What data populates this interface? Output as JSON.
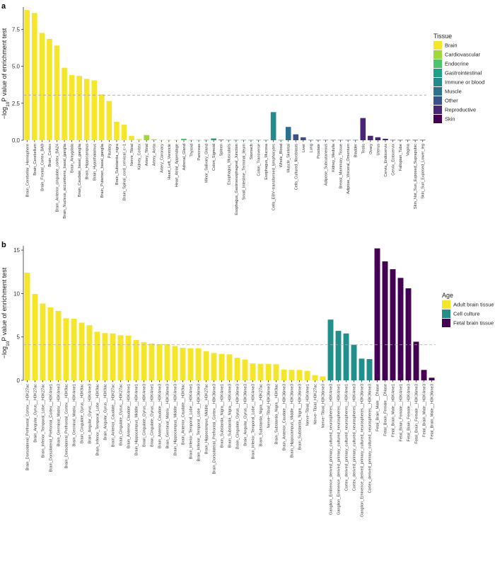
{
  "panels": {
    "a": {
      "label": "a"
    },
    "b": {
      "label": "b"
    }
  },
  "chart_data": [
    {
      "type": "bar",
      "ylabel": "−log10P value of enrichment test",
      "ylabel_parts": {
        "pre": "−log",
        "sub": "10",
        "post": "P value of enrichment test"
      },
      "ylim": [
        0,
        9
      ],
      "yticks": [
        "0.0",
        "2.5",
        "5.0",
        "7.5"
      ],
      "ytick_values": [
        0,
        2.5,
        5.0,
        7.5
      ],
      "threshold": 3.05,
      "legend": {
        "title": "Tissue",
        "position": "right",
        "entries": [
          {
            "name": "Brain",
            "color": "#F5E629"
          },
          {
            "name": "Cardiovascular",
            "color": "#A0D83A"
          },
          {
            "name": "Endocrine",
            "color": "#4DC36B"
          },
          {
            "name": "Gastrointestinal",
            "color": "#1FA187"
          },
          {
            "name": "Immune or blood",
            "color": "#238A8D"
          },
          {
            "name": "Muscle",
            "color": "#2C718E"
          },
          {
            "name": "Other",
            "color": "#3B518B"
          },
          {
            "name": "Reproductive",
            "color": "#482576"
          },
          {
            "name": "Skin",
            "color": "#440154"
          }
        ]
      },
      "categories": [
        "Brain_Cerebellar_Hemisphere",
        "Brain_Cerebellum",
        "Brain_Frontal_Cortex_BA9",
        "Brain_Cortex",
        "Brain_Anterior_cingulate_cortex_BA24",
        "Brain_Nucleus_accumbens_basal_ganglia",
        "Brain_Amygdala",
        "Brain_Caudate_basal_ganglia",
        "Brain_Hippocampus",
        "Brain_Hypothalamus",
        "Brain_Putamen_basal_ganglia",
        "Pituitary",
        "Brain_Substantia_nigra",
        "Brain_Spinal_cord_cervical_c−1",
        "Nerve_Tibial",
        "Kidney_Cortex",
        "Artery_Tibial",
        "Artery_Aorta",
        "Artery_Coronary",
        "Heart_Left_Ventricle",
        "Heart_Atrial_Appendage",
        "Adrenal_Gland",
        "Thyroid",
        "Pancreas",
        "Minor_Salivary_Gland",
        "Colon_Sigmoid",
        "Spleen",
        "Esophagus_Muscularis",
        "Esophagus_Gastroesophageal_Junction",
        "Small_Intestine_Terminal_Ileum",
        "Stomach",
        "Colon_Transverse",
        "Esophagus_Mucosa",
        "Cells_EBV−transformed_lymphocytes",
        "Whole_Blood",
        "Muscle_Skeletal",
        "Cells_Cultured_fibroblasts",
        "Liver",
        "Lung",
        "Prostate",
        "Adipose_Subcutaneous",
        "Kidney_Medulla",
        "Breast_Mammary_Tissue",
        "Adipose_Visceral_Omentum",
        "Bladder",
        "Testis",
        "Ovary",
        "Uterus",
        "Cervix_Endocervix",
        "Cervix_Ectocervix",
        "Fallopian_Tube",
        "Vagina",
        "Skin_Not_Sun_Exposed_Suprapubic",
        "Skin_Sun_Exposed_Lower_leg"
      ],
      "values": [
        8.8,
        8.6,
        7.25,
        6.85,
        6.4,
        4.9,
        4.4,
        4.35,
        4.15,
        4.05,
        3.1,
        2.65,
        1.25,
        1.05,
        0.3,
        0.08,
        0.35,
        0.06,
        0.02,
        0.02,
        0.02,
        0.1,
        0.02,
        0.02,
        0.02,
        0.12,
        0.04,
        0.02,
        0.02,
        0.02,
        0.02,
        0.02,
        0.02,
        1.9,
        0.02,
        0.9,
        0.4,
        0.2,
        0.02,
        0.02,
        0.02,
        0.02,
        0.02,
        0.02,
        0.02,
        1.5,
        0.3,
        0.2,
        0.1,
        0.02,
        0.02,
        0.02,
        0.02,
        0.02
      ],
      "groups": [
        0,
        0,
        0,
        0,
        0,
        0,
        0,
        0,
        0,
        0,
        0,
        0,
        0,
        0,
        0,
        0,
        1,
        1,
        1,
        1,
        1,
        2,
        2,
        2,
        3,
        3,
        3,
        3,
        3,
        3,
        3,
        3,
        3,
        4,
        4,
        5,
        6,
        6,
        6,
        6,
        6,
        6,
        6,
        6,
        6,
        7,
        7,
        7,
        7,
        7,
        7,
        7,
        8,
        8
      ]
    },
    {
      "type": "bar",
      "ylabel": "−log10P value of enrichment test",
      "ylabel_parts": {
        "pre": "−log",
        "sub": "10",
        "post": "P value of enrichment test"
      },
      "ylim": [
        0,
        15.5
      ],
      "yticks": [
        "0",
        "5",
        "10",
        "15"
      ],
      "ytick_values": [
        0,
        5,
        10,
        15
      ],
      "threshold": 4.1,
      "legend": {
        "title": "Age",
        "position": "right",
        "entries": [
          {
            "name": "Adult brain tissue",
            "color": "#F5E629"
          },
          {
            "name": "Cell culture",
            "color": "#21908C"
          },
          {
            "name": "Fetal brain tissue",
            "color": "#440154"
          }
        ]
      },
      "categories": [
        "Brain_Dorsolateral_Prefrontal_Cortex__H3K27ac",
        "Brain_Angular_Gyrus__H3K27ac",
        "Brain_Inferior_Temporal_Lobe__H3K27ac",
        "Brain_Dorsolateral_Prefrontal_Cortex__H3K4me1",
        "Brain_Germinal_Matrix__H3K4me3",
        "Brain_Dorsolateral_Prefrontal_Cortex__H3K9ac",
        "Brain_Germinal_Matrix__H3K4me1",
        "Brain_Cingulate_Gyrus__H3K9ac",
        "Brain_Angular_Gyrus__H3K4me3",
        "Brain_Inferior_Temporal_Lobe__H3K9ac",
        "Brain_Angular_Gyrus__H3K9ac",
        "Brain_Anterior_Caudate__H3K27ac",
        "Brain_Cingulate_Gyrus__H3K27ac",
        "Brain_Anterior_Caudate__H3K4me1",
        "Brain_Hippocampus_Middle__H3K4me1",
        "Brain_Cingulate_Gyrus__H3K4me3",
        "Brain_Cingulate_Gyrus__H3K4me1",
        "Brain_Anterior_Caudate__H3K4me3",
        "Brain_Germinal_Matrix__H3K36me3",
        "Brain_Hippocampus_Middle__H3K4me3",
        "Brain_Anterior_Caudate__H3K9ac",
        "Brain_Inferior_Temporal_Lobe__H3K4me1",
        "Brain_Inferior_Temporal_Lobe__H3K36me3",
        "Brain_Hippocampus_Middle__H3K27ac",
        "Brain_Dorsolateral_Prefrontal_Cortex__H3K36me3",
        "Brain_Substantia_Nigra__H3K4me1",
        "Brain_Substantia_Nigra__H3K4me3",
        "Brain_Cingulate_Gyrus__H3K36me3",
        "Brain_Angular_Gyrus__H3K36me3",
        "Brain_Inferior_Temporal_Lobe__H3K4me3",
        "Brain_Substantia_Nigra__H3K27ac",
        "Nerve−Tibial_H3K36me3",
        "Brain_Substantia_Nigra__H3K9ac",
        "Brain_Anterior_Caudate__H3K36me3",
        "Brain_Hippocampus_Middle__H3K36me3",
        "Brain_Substantia_Nigra__H3K36me3",
        "Nerve−Tibial_H3K4me1",
        "Nerve−Tibial_H3K27ac",
        "Nerve−Tibial_H3K36me3",
        "Ganglion_Eminence_derived_primary_cultured_neurospheres__H3K4me3",
        "Ganglion_Eminence_derived_primary_cultured_neurospheres__H3K4me1",
        "Cortex_derived_primary_cultured_neurospheres__H3K4me1",
        "Cortex_derived_primary_cultured_neurospheres__H3K4me3",
        "Ganglion_Eminence_derived_primary_cultured_neurospheres__H3K36me3",
        "Cortex_derived_primary_cultured_neurospheres__H3K36me3",
        "Fetal_Brain_Male__DNase",
        "Fetal_Brain_Female__DNase",
        "Fetal_Brain_Male__H3K4me1",
        "Fetal_Brain_Female__H3K4me1",
        "Fetal_Brain_Female__H3K4me3",
        "Fetal_Brain_Female__H3K36me3",
        "Fetal_Brain_Male__H3K4me3",
        "Fetal_Brain_Male__H3K36me3"
      ],
      "values": [
        12.4,
        9.95,
        8.85,
        8.4,
        8.0,
        7.15,
        7.1,
        6.65,
        6.35,
        5.6,
        5.45,
        5.4,
        5.2,
        5.15,
        4.65,
        4.4,
        4.25,
        4.15,
        4.15,
        3.95,
        3.75,
        3.7,
        3.7,
        3.35,
        3.15,
        3.05,
        3.0,
        2.6,
        2.4,
        1.95,
        1.9,
        1.9,
        1.85,
        1.25,
        1.2,
        1.2,
        1.1,
        0.6,
        0.45,
        7.0,
        5.7,
        5.4,
        4.1,
        2.5,
        2.45,
        15.2,
        13.7,
        12.8,
        11.8,
        10.6,
        4.45,
        1.2,
        0.3
      ],
      "groups": [
        0,
        0,
        0,
        0,
        0,
        0,
        0,
        0,
        0,
        0,
        0,
        0,
        0,
        0,
        0,
        0,
        0,
        0,
        0,
        0,
        0,
        0,
        0,
        0,
        0,
        0,
        0,
        0,
        0,
        0,
        0,
        0,
        0,
        0,
        0,
        0,
        0,
        0,
        0,
        1,
        1,
        1,
        1,
        1,
        1,
        2,
        2,
        2,
        2,
        2,
        2,
        2,
        2
      ]
    }
  ]
}
